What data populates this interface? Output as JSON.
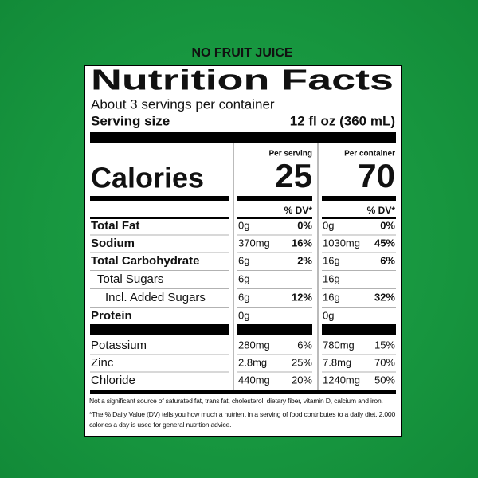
{
  "banner": "NO FRUIT JUICE",
  "title": "Nutrition Facts",
  "servings": "About 3 servings per container",
  "serving_size": {
    "label": "Serving size",
    "value": "12 fl oz (360 mL)"
  },
  "columns": [
    "Per serving",
    "Per container"
  ],
  "calories": {
    "label": "Calories",
    "values": [
      25,
      70
    ]
  },
  "dv_header": [
    "% DV*",
    "% DV*"
  ],
  "rows": [
    [
      "Total Fat",
      "0g",
      "0%",
      "0g",
      "0%"
    ],
    [
      "Sodium",
      "370mg",
      "16%",
      "1030mg",
      "45%"
    ],
    [
      "Total Carbohydrate",
      "6g",
      "2%",
      "16g",
      "6%"
    ],
    [
      "Total Sugars",
      "6g",
      null,
      "16g",
      null
    ],
    [
      "Incl. Added Sugars",
      "6g",
      "12%",
      "16g",
      "32%"
    ],
    [
      "Protein",
      "0g",
      null,
      "0g",
      null
    ]
  ],
  "minerals": [
    [
      "Potassium",
      "280mg",
      "6%",
      "780mg",
      "15%"
    ],
    [
      "Zinc",
      "2.8mg",
      "25%",
      "7.8mg",
      "70%"
    ],
    [
      "Chloride",
      "440mg",
      "20%",
      "1240mg",
      "50%"
    ]
  ],
  "footnotes": [
    "Not a significant source of saturated fat, trans fat, cholesterol, dietary fiber, vitamin D, calcium and iron.",
    "*The % Daily Value (DV) tells you how much a nutrient in a serving of food contributes to a daily diet. 2,000 calories a day is used for general nutrition advice."
  ]
}
